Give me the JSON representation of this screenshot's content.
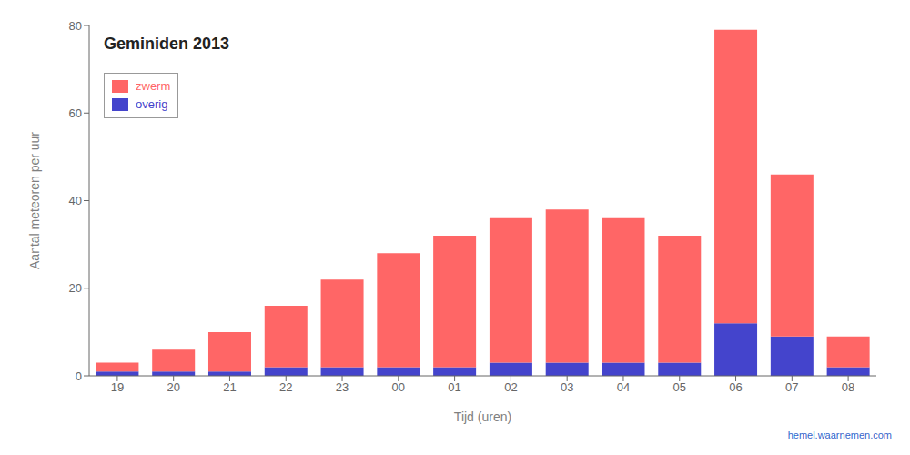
{
  "chart_data": {
    "type": "bar",
    "title": "Geminiden 2013",
    "xlabel": "Tijd (uren)",
    "ylabel": "Aantal meteoren per uur",
    "annotations": [
      "hemel.waarnemen.com"
    ],
    "categories": [
      "19",
      "20",
      "21",
      "22",
      "23",
      "00",
      "01",
      "02",
      "03",
      "04",
      "05",
      "06",
      "07",
      "08"
    ],
    "series": [
      {
        "name": "overig",
        "color": "#4444CC",
        "values": [
          1,
          1,
          1,
          2,
          2,
          2,
          2,
          3,
          3,
          3,
          3,
          12,
          9,
          2
        ]
      },
      {
        "name": "zwerm",
        "color": "#FF6666",
        "values": [
          2,
          5,
          9,
          14,
          20,
          26,
          30,
          33,
          35,
          33,
          29,
          67,
          37,
          7
        ]
      }
    ],
    "stacked": true,
    "ylim": [
      0,
      80
    ],
    "yticks": [
      0,
      20,
      40,
      60,
      80
    ],
    "grid": false,
    "legend": "upper left"
  }
}
